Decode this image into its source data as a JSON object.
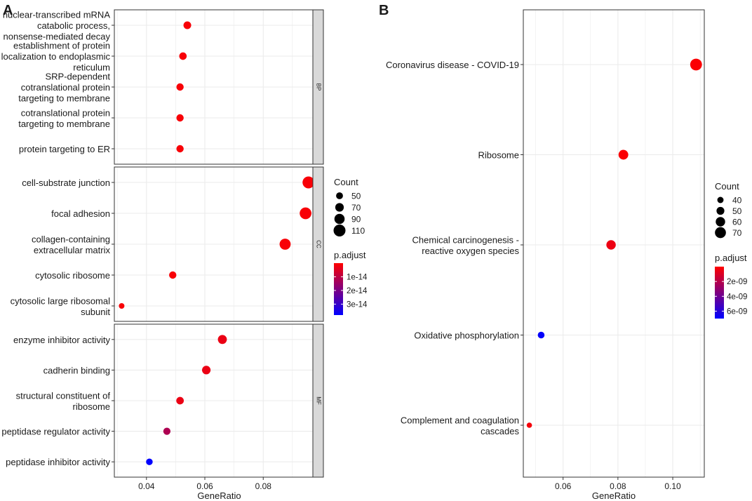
{
  "panel_labels": {
    "a": "A",
    "b": "B"
  },
  "colors": {
    "high": "#ff0000",
    "low": "#0000ff",
    "grid": "#ebebeb",
    "strip": "#d9d9d9"
  },
  "chart_data": [
    {
      "id": "A",
      "type": "scatter",
      "xlabel": "GeneRatio",
      "xlim": [
        0.029,
        0.097
      ],
      "xticks": [
        0.04,
        0.06,
        0.08
      ],
      "xtick_labels": [
        "0.04",
        "0.06",
        "0.08"
      ],
      "facets": [
        {
          "strip": "BP",
          "items": [
            {
              "label": [
                "nuclear-transcribed mRNA",
                "catabolic process,",
                "nonsense-mediated decay"
              ],
              "x": 0.054,
              "count": 60,
              "p": 1e-15
            },
            {
              "label": [
                "establishment of protein",
                "localization to endoplasmic",
                "reticulum"
              ],
              "x": 0.0525,
              "count": 57,
              "p": 1e-15
            },
            {
              "label": [
                "SRP-dependent",
                "cotranslational protein",
                "targeting to membrane"
              ],
              "x": 0.0515,
              "count": 55,
              "p": 1e-15
            },
            {
              "label": [
                "cotranslational protein",
                "targeting to membrane"
              ],
              "x": 0.0515,
              "count": 55,
              "p": 1e-15
            },
            {
              "label": [
                "protein targeting to ER"
              ],
              "x": 0.0515,
              "count": 55,
              "p": 1e-15
            }
          ]
        },
        {
          "strip": "CC",
          "items": [
            {
              "label": [
                "cell-substrate junction"
              ],
              "x": 0.0955,
              "count": 110,
              "p": 1e-15
            },
            {
              "label": [
                "focal adhesion"
              ],
              "x": 0.0945,
              "count": 108,
              "p": 1e-15
            },
            {
              "label": [
                "collagen-containing",
                "extracellular matrix"
              ],
              "x": 0.0875,
              "count": 100,
              "p": 1e-15
            },
            {
              "label": [
                "cytosolic ribosome"
              ],
              "x": 0.049,
              "count": 55,
              "p": 1e-15
            },
            {
              "label": [
                "cytosolic large ribosomal",
                "subunit"
              ],
              "x": 0.0315,
              "count": 35,
              "p": 1e-15
            }
          ]
        },
        {
          "strip": "MF",
          "items": [
            {
              "label": [
                "enzyme inhibitor activity"
              ],
              "x": 0.066,
              "count": 75,
              "p": 3e-15
            },
            {
              "label": [
                "cadherin binding"
              ],
              "x": 0.0605,
              "count": 70,
              "p": 3e-15
            },
            {
              "label": [
                "structural constituent of",
                "ribosome"
              ],
              "x": 0.0515,
              "count": 58,
              "p": 3e-15
            },
            {
              "label": [
                "peptidase regulator activity"
              ],
              "x": 0.047,
              "count": 54,
              "p": 1.2e-14
            },
            {
              "label": [
                "peptidase inhibitor activity"
              ],
              "x": 0.041,
              "count": 47,
              "p": 3.8e-14
            }
          ]
        }
      ],
      "legend": {
        "count_title": "Count",
        "count_values": [
          50,
          70,
          90,
          110
        ],
        "count_labels": [
          "50",
          "70",
          "90",
          "110"
        ],
        "color_title": "p.adjust",
        "p_range": [
          0,
          3.8e-14
        ],
        "color_ticks": [
          1e-14,
          2e-14,
          3e-14
        ],
        "color_tick_labels": [
          "1e-14",
          "2e-14",
          "3e-14"
        ]
      }
    },
    {
      "id": "B",
      "type": "scatter",
      "xlabel": "GeneRatio",
      "xlim": [
        0.0455,
        0.1115
      ],
      "xticks": [
        0.06,
        0.08,
        0.1
      ],
      "xtick_labels": [
        "0.06",
        "0.08",
        "0.10"
      ],
      "items": [
        {
          "label": [
            "Coronavirus disease - COVID-19"
          ],
          "x": 0.1085,
          "count": 75,
          "p": 1e-10
        },
        {
          "label": [
            "Ribosome"
          ],
          "x": 0.082,
          "count": 62,
          "p": 1e-10
        },
        {
          "label": [
            "Chemical carcinogenesis -",
            "reactive oxygen species"
          ],
          "x": 0.0775,
          "count": 60,
          "p": 5e-10
        },
        {
          "label": [
            "Oxidative phosphorylation"
          ],
          "x": 0.052,
          "count": 43,
          "p": 6.9e-09
        },
        {
          "label": [
            "Complement and coagulation",
            "cascades"
          ],
          "x": 0.0477,
          "count": 34,
          "p": 3e-10
        }
      ],
      "legend": {
        "count_title": "Count",
        "count_values": [
          40,
          50,
          60,
          70
        ],
        "count_labels": [
          "40",
          "50",
          "60",
          "70"
        ],
        "color_title": "p.adjust",
        "p_range": [
          0,
          7e-09
        ],
        "color_ticks": [
          2e-09,
          4e-09,
          6e-09
        ],
        "color_tick_labels": [
          "2e-09",
          "4e-09",
          "6e-09"
        ]
      }
    }
  ]
}
